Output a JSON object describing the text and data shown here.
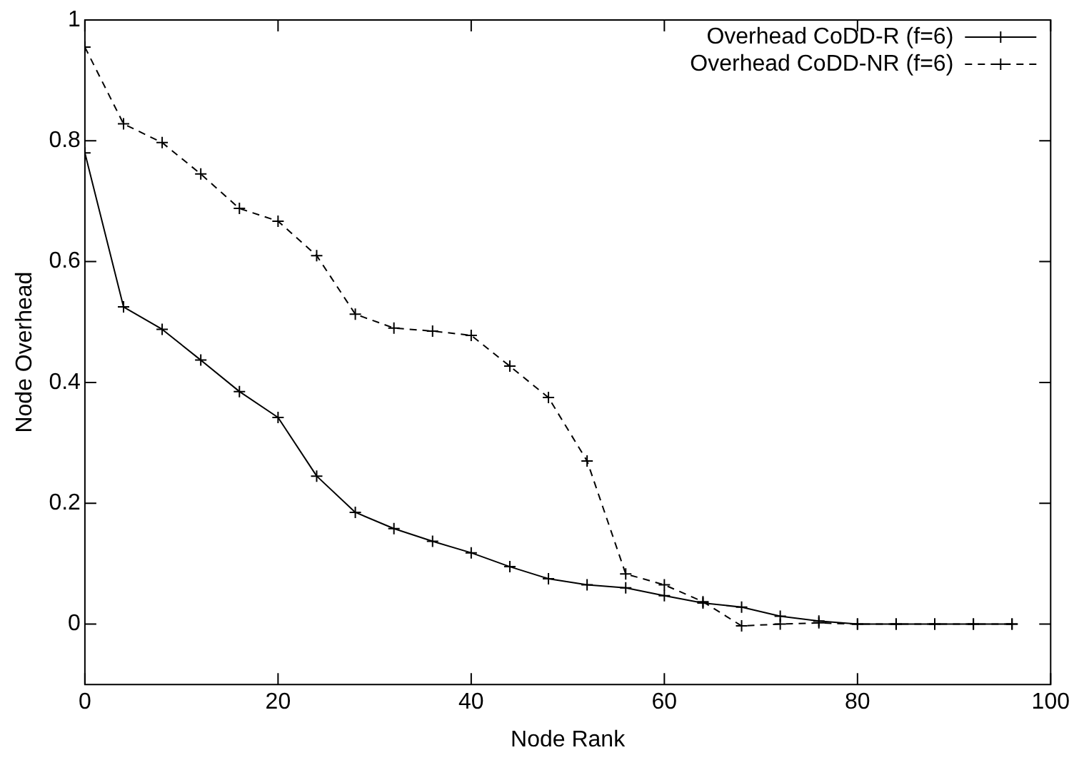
{
  "chart_data": {
    "type": "line",
    "xlabel": "Node Rank",
    "ylabel": "Node Overhead",
    "xlim": [
      0,
      100
    ],
    "xticks": [
      0,
      20,
      40,
      60,
      80,
      100
    ],
    "ylim": [
      -0.1,
      1
    ],
    "yticks": [
      0,
      0.2,
      0.4,
      0.6,
      0.8,
      1
    ],
    "grid": false,
    "legend": "top right",
    "marker": "cross",
    "x": [
      0,
      4,
      8,
      12,
      16,
      20,
      24,
      28,
      32,
      36,
      40,
      44,
      48,
      52,
      56,
      60,
      64,
      68,
      72,
      76,
      80,
      84,
      88,
      92,
      96
    ],
    "series": [
      {
        "name": "Overhead CoDD-R (f=6)",
        "color": "#000000",
        "line_style": "solid",
        "values": [
          0.78,
          0.525,
          0.488,
          0.437,
          0.385,
          0.342,
          0.245,
          0.185,
          0.158,
          0.137,
          0.118,
          0.095,
          0.075,
          0.065,
          0.06,
          0.047,
          0.035,
          0.028,
          0.013,
          0.005,
          0,
          0,
          0,
          0,
          0
        ]
      },
      {
        "name": "Overhead CoDD-NR (f=6)",
        "color": "#000000",
        "line_style": "dashed",
        "values": [
          0.955,
          0.828,
          0.797,
          0.745,
          0.688,
          0.667,
          0.61,
          0.513,
          0.49,
          0.485,
          0.478,
          0.427,
          0.375,
          0.27,
          0.083,
          0.065,
          0.037,
          -0.003,
          0,
          0.002,
          0,
          0,
          0,
          0,
          0
        ]
      }
    ]
  }
}
